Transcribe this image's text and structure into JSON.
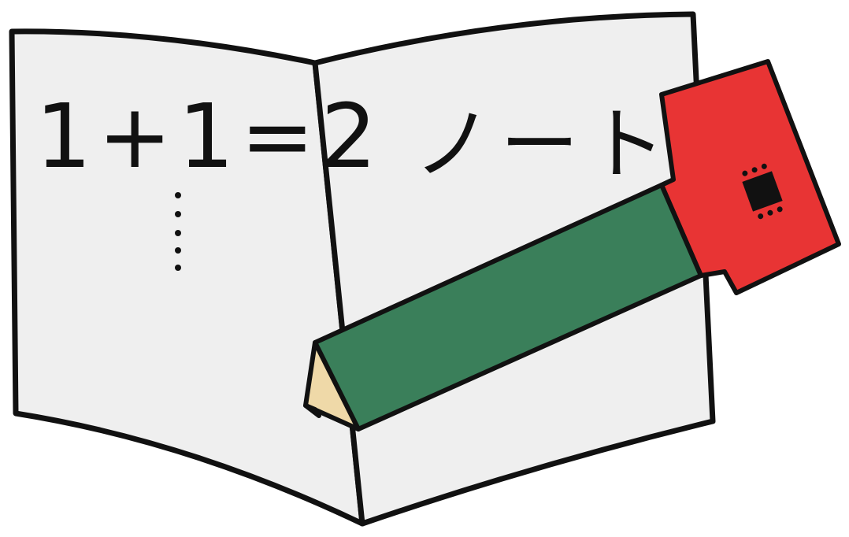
{
  "left_page": {
    "text": "1+1=2"
  },
  "right_page": {
    "text": "ノート"
  }
}
